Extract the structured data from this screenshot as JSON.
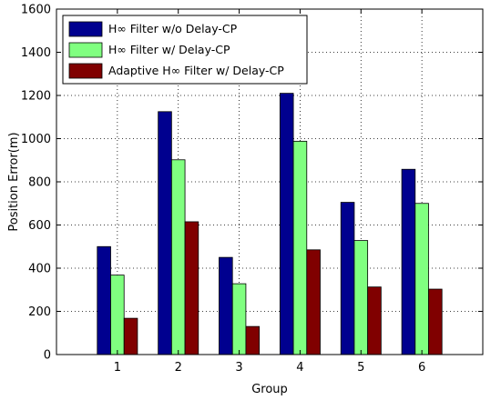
{
  "chart_data": {
    "type": "bar",
    "title": "",
    "xlabel": "Group",
    "ylabel": "Position Error(m)",
    "ylim": [
      0,
      1600
    ],
    "yticks": [
      0,
      200,
      400,
      600,
      800,
      1000,
      1200,
      1400,
      1600
    ],
    "xlim": [
      0,
      7
    ],
    "categories": [
      "1",
      "2",
      "3",
      "4",
      "5",
      "6"
    ],
    "grid": true,
    "legend_position": "top-left",
    "series": [
      {
        "name": "H∞ Filter w/o Delay-CP",
        "color": "#00008F",
        "values": [
          500,
          1125,
          450,
          1210,
          705,
          858
        ]
      },
      {
        "name": "H∞ Filter w/ Delay-CP",
        "color": "#80FF80",
        "values": [
          368,
          902,
          328,
          988,
          528,
          700
        ]
      },
      {
        "name": "Adaptive H∞ Filter w/ Delay-CP",
        "color": "#800000",
        "values": [
          168,
          615,
          130,
          485,
          313,
          303
        ]
      }
    ]
  }
}
